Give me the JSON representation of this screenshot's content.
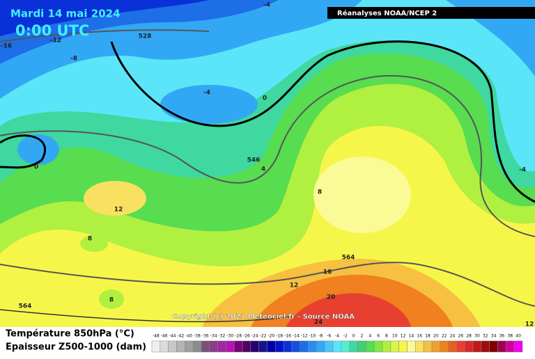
{
  "header": {
    "date": "Mardi 14 mai 2024",
    "time": "0:00 UTC",
    "source": "Réanalyses NOAA/NCEP 2"
  },
  "copyright": "Copyright (c) 2021 Meteociel.fr - Source NOAA",
  "legend": {
    "temperature": "Température 850hPa (°C)",
    "thickness": "Epaisseur Z500-1000 (dam)"
  },
  "scale": {
    "labels": [
      -48,
      -46,
      -44,
      -42,
      -40,
      -38,
      -36,
      -34,
      -32,
      -30,
      -28,
      -26,
      -24,
      -22,
      -20,
      -18,
      -16,
      -14,
      -12,
      -10,
      -8,
      -6,
      -4,
      -2,
      0,
      2,
      4,
      6,
      8,
      10,
      12,
      14,
      16,
      18,
      20,
      22,
      24,
      26,
      28,
      30,
      32,
      34,
      36,
      38,
      40
    ],
    "colors": [
      "#f0f0f0",
      "#dcdcdc",
      "#c8c8c8",
      "#b4b4b4",
      "#a0a0a0",
      "#8c8c8c",
      "#785078",
      "#8c3c8c",
      "#a028a0",
      "#b414b4",
      "#780078",
      "#500064",
      "#28006e",
      "#14148c",
      "#0000a0",
      "#0014c8",
      "#0a30d8",
      "#1450e0",
      "#1e6ee8",
      "#288cf0",
      "#32a8f4",
      "#46c8f8",
      "#5ae6f8",
      "#50f0d0",
      "#3ed8a0",
      "#40d070",
      "#58dc50",
      "#80e840",
      "#b0f040",
      "#d8f448",
      "#f6f64a",
      "#fafa96",
      "#f8e060",
      "#f8c040",
      "#f0a030",
      "#f08020",
      "#e86020",
      "#e84030",
      "#d82828",
      "#c01818",
      "#a00c0c",
      "#800000",
      "#a00050",
      "#d000a0",
      "#f000f0"
    ]
  },
  "contour_labels": [
    "-4",
    "528",
    "-12",
    "-16",
    "-8",
    "-4",
    "0",
    "0",
    "546",
    "4",
    "8",
    "12",
    "8",
    "8",
    "564",
    "16",
    "12",
    "20",
    "24",
    "-4",
    "12",
    "564"
  ]
}
